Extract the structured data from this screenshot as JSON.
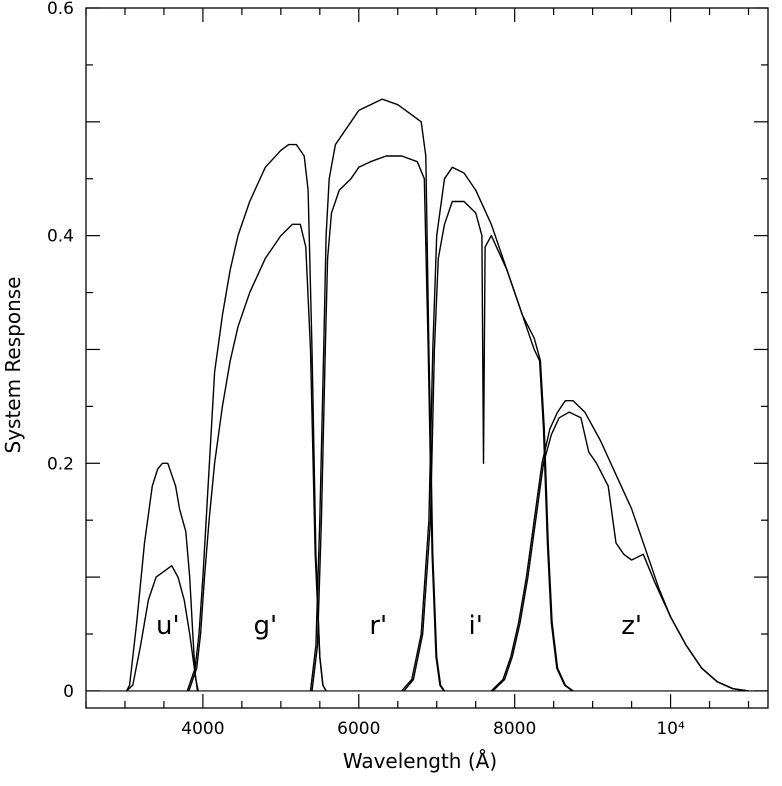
{
  "chart_data": {
    "type": "line",
    "title": "",
    "xlabel": "Wavelength (Å)",
    "ylabel": "System Response",
    "xlim": [
      2500,
      11250
    ],
    "ylim": [
      -0.015,
      0.6
    ],
    "x_ticks": [
      {
        "value": 4000,
        "label": "4000"
      },
      {
        "value": 6000,
        "label": "6000"
      },
      {
        "value": 8000,
        "label": "8000"
      },
      {
        "value": 10000,
        "label": "10⁴"
      }
    ],
    "y_ticks": [
      {
        "value": 0,
        "label": "0"
      },
      {
        "value": 0.2,
        "label": "0.2"
      },
      {
        "value": 0.4,
        "label": "0.4"
      },
      {
        "value": 0.6,
        "label": "0.6"
      }
    ],
    "grid": false,
    "legend": "none",
    "band_labels": [
      {
        "text": "u'",
        "x": 3550,
        "y": 0.05
      },
      {
        "text": "g'",
        "x": 4800,
        "y": 0.05
      },
      {
        "text": "r'",
        "x": 6250,
        "y": 0.05
      },
      {
        "text": "i'",
        "x": 7500,
        "y": 0.05
      },
      {
        "text": "z'",
        "x": 9500,
        "y": 0.05
      }
    ],
    "series": [
      {
        "values": [
          [
            3020,
            0
          ],
          [
            3060,
            0.005
          ],
          [
            3150,
            0.06
          ],
          [
            3250,
            0.13
          ],
          [
            3350,
            0.18
          ],
          [
            3420,
            0.195
          ],
          [
            3480,
            0.2
          ],
          [
            3550,
            0.2
          ],
          [
            3600,
            0.19
          ],
          [
            3650,
            0.18
          ],
          [
            3700,
            0.16
          ],
          [
            3780,
            0.14
          ],
          [
            3830,
            0.1
          ],
          [
            3870,
            0.05
          ],
          [
            3900,
            0.015
          ],
          [
            3930,
            0
          ]
        ]
      },
      {
        "values": [
          [
            3020,
            0
          ],
          [
            3100,
            0.005
          ],
          [
            3200,
            0.04
          ],
          [
            3300,
            0.08
          ],
          [
            3400,
            0.1
          ],
          [
            3500,
            0.105
          ],
          [
            3600,
            0.11
          ],
          [
            3680,
            0.1
          ],
          [
            3760,
            0.08
          ],
          [
            3830,
            0.05
          ],
          [
            3880,
            0.025
          ],
          [
            3910,
            0.01
          ],
          [
            3940,
            0
          ]
        ]
      },
      {
        "values": [
          [
            3800,
            0
          ],
          [
            3900,
            0.02
          ],
          [
            3950,
            0.05
          ],
          [
            4000,
            0.1
          ],
          [
            4050,
            0.16
          ],
          [
            4100,
            0.22
          ],
          [
            4150,
            0.28
          ],
          [
            4250,
            0.33
          ],
          [
            4350,
            0.37
          ],
          [
            4450,
            0.4
          ],
          [
            4600,
            0.43
          ],
          [
            4800,
            0.46
          ],
          [
            5000,
            0.475
          ],
          [
            5100,
            0.48
          ],
          [
            5200,
            0.48
          ],
          [
            5300,
            0.47
          ],
          [
            5350,
            0.44
          ],
          [
            5400,
            0.3
          ],
          [
            5450,
            0.12
          ],
          [
            5500,
            0.03
          ],
          [
            5540,
            0.005
          ],
          [
            5580,
            0
          ]
        ]
      },
      {
        "values": [
          [
            3820,
            0
          ],
          [
            3920,
            0.02
          ],
          [
            3970,
            0.05
          ],
          [
            4020,
            0.1
          ],
          [
            4080,
            0.15
          ],
          [
            4150,
            0.2
          ],
          [
            4250,
            0.25
          ],
          [
            4350,
            0.29
          ],
          [
            4450,
            0.32
          ],
          [
            4600,
            0.35
          ],
          [
            4800,
            0.38
          ],
          [
            5000,
            0.4
          ],
          [
            5150,
            0.41
          ],
          [
            5250,
            0.41
          ],
          [
            5320,
            0.39
          ],
          [
            5380,
            0.3
          ],
          [
            5440,
            0.12
          ],
          [
            5500,
            0.03
          ],
          [
            5540,
            0.005
          ],
          [
            5580,
            0
          ]
        ]
      },
      {
        "values": [
          [
            5380,
            0
          ],
          [
            5450,
            0.04
          ],
          [
            5500,
            0.15
          ],
          [
            5550,
            0.3
          ],
          [
            5580,
            0.4
          ],
          [
            5620,
            0.45
          ],
          [
            5700,
            0.48
          ],
          [
            5800,
            0.49
          ],
          [
            5900,
            0.5
          ],
          [
            6000,
            0.51
          ],
          [
            6150,
            0.515
          ],
          [
            6300,
            0.52
          ],
          [
            6500,
            0.515
          ],
          [
            6700,
            0.505
          ],
          [
            6800,
            0.5
          ],
          [
            6860,
            0.47
          ],
          [
            6900,
            0.3
          ],
          [
            6950,
            0.12
          ],
          [
            7000,
            0.03
          ],
          [
            7050,
            0.005
          ],
          [
            7100,
            0
          ]
        ]
      },
      {
        "values": [
          [
            5400,
            0
          ],
          [
            5470,
            0.04
          ],
          [
            5520,
            0.15
          ],
          [
            5570,
            0.3
          ],
          [
            5600,
            0.38
          ],
          [
            5650,
            0.42
          ],
          [
            5750,
            0.44
          ],
          [
            5900,
            0.45
          ],
          [
            6000,
            0.46
          ],
          [
            6150,
            0.465
          ],
          [
            6350,
            0.47
          ],
          [
            6550,
            0.47
          ],
          [
            6750,
            0.465
          ],
          [
            6840,
            0.45
          ],
          [
            6890,
            0.3
          ],
          [
            6940,
            0.12
          ],
          [
            6990,
            0.03
          ],
          [
            7040,
            0.005
          ],
          [
            7090,
            0
          ]
        ]
      },
      {
        "values": [
          [
            6550,
            0
          ],
          [
            6680,
            0.01
          ],
          [
            6800,
            0.05
          ],
          [
            6900,
            0.15
          ],
          [
            6950,
            0.3
          ],
          [
            7000,
            0.4
          ],
          [
            7100,
            0.45
          ],
          [
            7200,
            0.46
          ],
          [
            7350,
            0.455
          ],
          [
            7500,
            0.44
          ],
          [
            7700,
            0.41
          ],
          [
            7900,
            0.37
          ],
          [
            8100,
            0.33
          ],
          [
            8250,
            0.31
          ],
          [
            8330,
            0.29
          ],
          [
            8380,
            0.23
          ],
          [
            8430,
            0.13
          ],
          [
            8480,
            0.06
          ],
          [
            8550,
            0.02
          ],
          [
            8650,
            0.005
          ],
          [
            8750,
            0
          ]
        ]
      },
      {
        "values": [
          [
            6580,
            0
          ],
          [
            6700,
            0.01
          ],
          [
            6820,
            0.05
          ],
          [
            6920,
            0.15
          ],
          [
            6970,
            0.3
          ],
          [
            7020,
            0.38
          ],
          [
            7100,
            0.41
          ],
          [
            7200,
            0.43
          ],
          [
            7350,
            0.43
          ],
          [
            7500,
            0.42
          ],
          [
            7580,
            0.4
          ],
          [
            7600,
            0.2
          ],
          [
            7620,
            0.39
          ],
          [
            7700,
            0.4
          ],
          [
            7900,
            0.37
          ],
          [
            8100,
            0.33
          ],
          [
            8250,
            0.3
          ],
          [
            8320,
            0.29
          ],
          [
            8370,
            0.23
          ],
          [
            8420,
            0.13
          ],
          [
            8470,
            0.06
          ],
          [
            8540,
            0.02
          ],
          [
            8640,
            0.005
          ],
          [
            8740,
            0
          ]
        ]
      },
      {
        "values": [
          [
            7700,
            0
          ],
          [
            7850,
            0.01
          ],
          [
            7950,
            0.03
          ],
          [
            8050,
            0.06
          ],
          [
            8150,
            0.1
          ],
          [
            8250,
            0.15
          ],
          [
            8350,
            0.2
          ],
          [
            8450,
            0.23
          ],
          [
            8550,
            0.245
          ],
          [
            8650,
            0.255
          ],
          [
            8750,
            0.255
          ],
          [
            8900,
            0.245
          ],
          [
            9100,
            0.22
          ],
          [
            9300,
            0.19
          ],
          [
            9500,
            0.16
          ],
          [
            9700,
            0.12
          ],
          [
            9850,
            0.09
          ],
          [
            10000,
            0.065
          ],
          [
            10200,
            0.04
          ],
          [
            10400,
            0.02
          ],
          [
            10600,
            0.008
          ],
          [
            10800,
            0.002
          ],
          [
            11000,
            0
          ]
        ]
      },
      {
        "values": [
          [
            7720,
            0
          ],
          [
            7870,
            0.01
          ],
          [
            7970,
            0.03
          ],
          [
            8070,
            0.06
          ],
          [
            8170,
            0.1
          ],
          [
            8270,
            0.15
          ],
          [
            8370,
            0.2
          ],
          [
            8470,
            0.225
          ],
          [
            8570,
            0.24
          ],
          [
            8700,
            0.245
          ],
          [
            8850,
            0.24
          ],
          [
            8950,
            0.21
          ],
          [
            9050,
            0.2
          ],
          [
            9200,
            0.18
          ],
          [
            9300,
            0.13
          ],
          [
            9400,
            0.12
          ],
          [
            9500,
            0.115
          ],
          [
            9650,
            0.12
          ],
          [
            9800,
            0.095
          ],
          [
            10000,
            0.065
          ],
          [
            10200,
            0.04
          ],
          [
            10400,
            0.02
          ],
          [
            10600,
            0.008
          ],
          [
            10800,
            0.002
          ],
          [
            11000,
            0
          ]
        ]
      }
    ]
  }
}
